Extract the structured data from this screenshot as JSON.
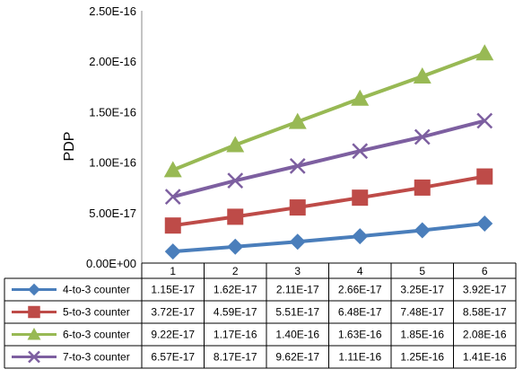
{
  "chart_data": {
    "type": "line",
    "title": "",
    "xlabel": "",
    "ylabel": "PDP",
    "ylim": [
      0,
      2.5e-16
    ],
    "y_ticks": [
      "0.00E+00",
      "5.00E-17",
      "1.00E-16",
      "1.50E-16",
      "2.00E-16",
      "2.50E-16"
    ],
    "y_tick_values": [
      0,
      5e-17,
      1e-16,
      1.5e-16,
      2e-16,
      2.5e-16
    ],
    "categories": [
      "1",
      "2",
      "3",
      "4",
      "5",
      "6"
    ],
    "grid": false,
    "legend": "data-table-below",
    "series": [
      {
        "name": "4-to-3 counter",
        "color": "#4A7EBB",
        "marker": "diamond",
        "values": [
          1.15e-17,
          1.62e-17,
          2.11e-17,
          2.66e-17,
          3.25e-17,
          3.92e-17
        ],
        "labels": [
          "1.15E-17",
          "1.62E-17",
          "2.11E-17",
          "2.66E-17",
          "3.25E-17",
          "3.92E-17"
        ]
      },
      {
        "name": "5-to-3 counter",
        "color": "#BE4B48",
        "marker": "square",
        "values": [
          3.72e-17,
          4.59e-17,
          5.51e-17,
          6.48e-17,
          7.48e-17,
          8.58e-17
        ],
        "labels": [
          "3.72E-17",
          "4.59E-17",
          "5.51E-17",
          "6.48E-17",
          "7.48E-17",
          "8.58E-17"
        ]
      },
      {
        "name": "6-to-3 counter",
        "color": "#98B954",
        "marker": "triangle",
        "values": [
          9.22e-17,
          1.17e-16,
          1.4e-16,
          1.63e-16,
          1.85e-16,
          2.08e-16
        ],
        "labels": [
          "9.22E-17",
          "1.17E-16",
          "1.40E-16",
          "1.63E-16",
          "1.85E-16",
          "2.08E-16"
        ]
      },
      {
        "name": "7-to-3 counter",
        "color": "#7D5FA0",
        "marker": "x",
        "values": [
          6.57e-17,
          8.17e-17,
          9.62e-17,
          1.11e-16,
          1.25e-16,
          1.41e-16
        ],
        "labels": [
          "6.57E-17",
          "8.17E-17",
          "9.62E-17",
          "1.11E-16",
          "1.25E-16",
          "1.41E-16"
        ]
      }
    ]
  }
}
